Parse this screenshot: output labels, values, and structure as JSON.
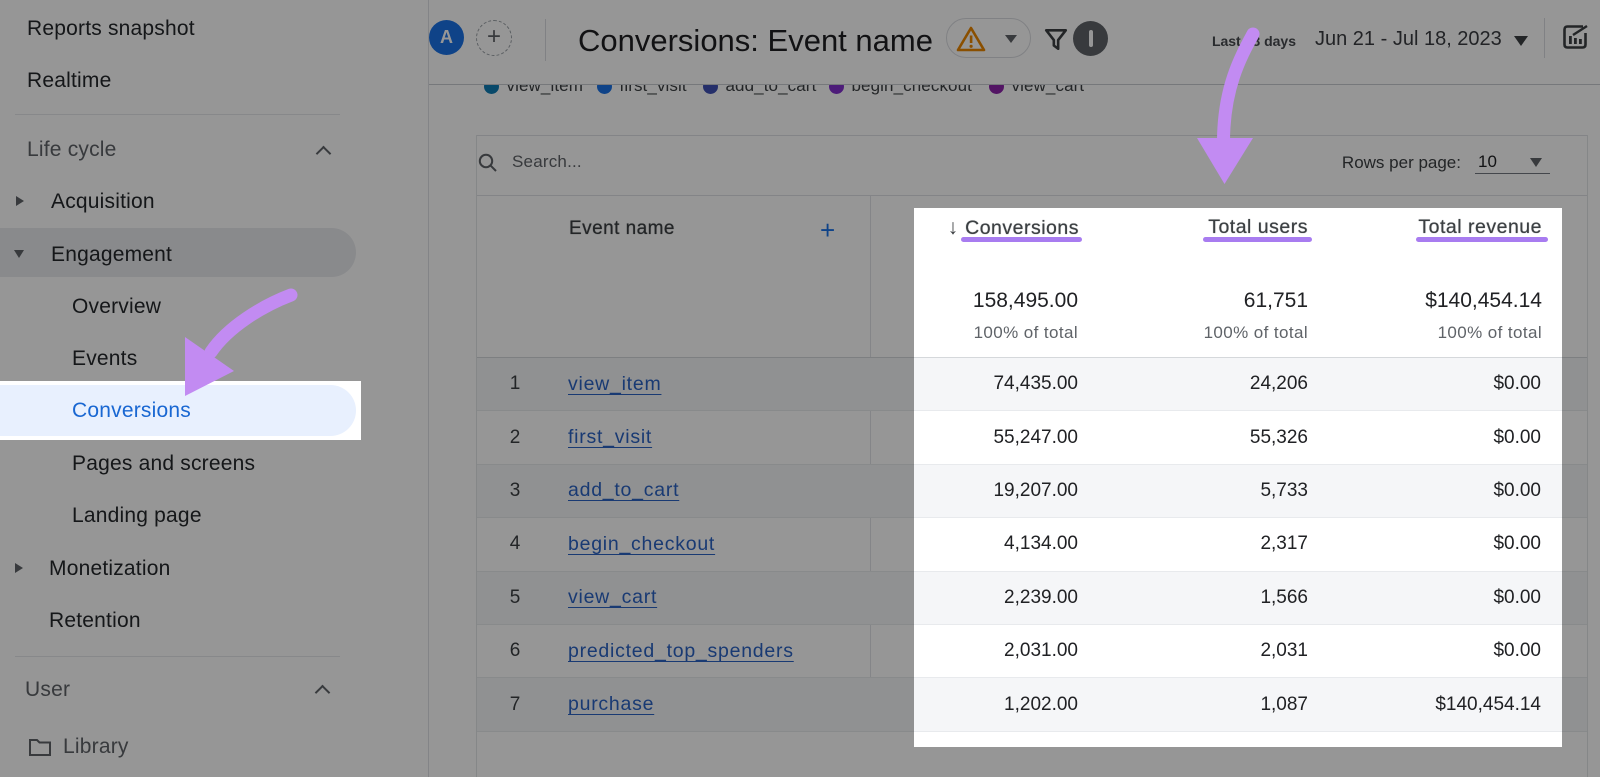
{
  "header": {
    "avatar_letter": "A",
    "plus_label": "+",
    "title": "Conversions: Event name",
    "date_range_label": "Last 28 days",
    "date_range": "Jun 21 - Jul 18, 2023",
    "icons": [
      "warning-icon",
      "filter-icon",
      "insights-icon"
    ]
  },
  "sidebar": {
    "items": [
      {
        "label": "Reports snapshot"
      },
      {
        "label": "Realtime"
      },
      {
        "label": "Life cycle"
      },
      {
        "label": "Acquisition"
      },
      {
        "label": "Engagement"
      },
      {
        "label": "Overview"
      },
      {
        "label": "Events"
      },
      {
        "label": "Conversions",
        "selected": true
      },
      {
        "label": "Pages and screens"
      },
      {
        "label": "Landing page"
      },
      {
        "label": "Monetization"
      },
      {
        "label": "Retention"
      },
      {
        "label": "User"
      },
      {
        "label": "Library"
      }
    ]
  },
  "legend": {
    "items": [
      {
        "label": "view_item",
        "color": "#0f7cb4"
      },
      {
        "label": "first_visit",
        "color": "#1a73e8"
      },
      {
        "label": "add_to_cart",
        "color": "#3f51b5"
      },
      {
        "label": "begin_checkout",
        "color": "#8430ce"
      },
      {
        "label": "view_cart",
        "color": "#8e24aa"
      }
    ]
  },
  "table": {
    "search_placeholder": "Search...",
    "rows_per_page_label": "Rows per page:",
    "rows_per_page_value": "10",
    "add_symbol": "+",
    "columns": {
      "event_name": "Event name",
      "conversions": "Conversions",
      "total_users": "Total users",
      "total_revenue": "Total revenue"
    },
    "sort_arrow": "↓",
    "totals": {
      "conversions": "158,495.00",
      "users": "61,751",
      "revenue": "$140,454.14",
      "sub": "100% of total"
    },
    "rows": [
      {
        "n": "1",
        "name": "view_item",
        "c": "74,435.00",
        "u": "24,206",
        "r": "$0.00"
      },
      {
        "n": "2",
        "name": "first_visit",
        "c": "55,247.00",
        "u": "55,326",
        "r": "$0.00"
      },
      {
        "n": "3",
        "name": "add_to_cart",
        "c": "19,207.00",
        "u": "5,733",
        "r": "$0.00"
      },
      {
        "n": "4",
        "name": "begin_checkout",
        "c": "4,134.00",
        "u": "2,317",
        "r": "$0.00"
      },
      {
        "n": "5",
        "name": "view_cart",
        "c": "2,239.00",
        "u": "1,566",
        "r": "$0.00"
      },
      {
        "n": "6",
        "name": "predicted_top_spenders",
        "c": "2,031.00",
        "u": "2,031",
        "r": "$0.00"
      },
      {
        "n": "7",
        "name": "purchase",
        "c": "1,202.00",
        "u": "1,087",
        "r": "$140,454.14"
      }
    ]
  },
  "colors": {
    "accent_blue": "#1a73e8",
    "selected_blue": "#1967d2",
    "annotation_purple": "#c28bf2",
    "underline_purple": "#a87cf0",
    "warning_orange": "#ea8600"
  }
}
